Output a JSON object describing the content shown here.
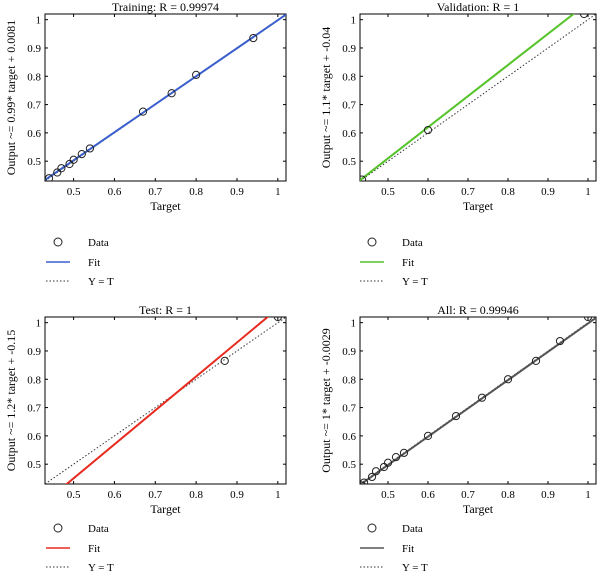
{
  "chart_data": [
    {
      "type": "scatter",
      "title": "Training: R = 0.99974",
      "xlabel": "Target",
      "ylabel": "Output ~= 0.99* target + 0.0081",
      "xlim": [
        0.43,
        1.02
      ],
      "ylim": [
        0.43,
        1.02
      ],
      "xticks": [
        "0.5",
        "0.6",
        "0.7",
        "0.8",
        "0.9",
        "1"
      ],
      "yticks": [
        "0.5",
        "0.6",
        "0.7",
        "0.8",
        "0.9",
        "1"
      ],
      "fit_color": "#3a5fcd",
      "fit": {
        "slope": 0.99,
        "intercept": 0.0081
      },
      "points": [
        {
          "x": 0.44,
          "y": 0.44
        },
        {
          "x": 0.46,
          "y": 0.46
        },
        {
          "x": 0.47,
          "y": 0.475
        },
        {
          "x": 0.49,
          "y": 0.49
        },
        {
          "x": 0.5,
          "y": 0.505
        },
        {
          "x": 0.52,
          "y": 0.525
        },
        {
          "x": 0.54,
          "y": 0.545
        },
        {
          "x": 0.67,
          "y": 0.675
        },
        {
          "x": 0.74,
          "y": 0.74
        },
        {
          "x": 0.8,
          "y": 0.805
        },
        {
          "x": 0.94,
          "y": 0.935
        }
      ],
      "legend": [
        "Data",
        "Fit",
        "Y = T"
      ]
    },
    {
      "type": "scatter",
      "title": "Validation: R = 1",
      "xlabel": "Target",
      "ylabel": "Output ~= 1.1* target + -0.04",
      "xlim": [
        0.43,
        1.02
      ],
      "ylim": [
        0.43,
        1.02
      ],
      "xticks": [
        "0.5",
        "0.6",
        "0.7",
        "0.8",
        "0.9",
        "1"
      ],
      "yticks": [
        "0.5",
        "0.6",
        "0.7",
        "0.8",
        "0.9",
        "1"
      ],
      "fit_color": "#55c32a",
      "fit": {
        "slope": 1.1,
        "intercept": -0.04
      },
      "points": [
        {
          "x": 0.435,
          "y": 0.435
        },
        {
          "x": 0.6,
          "y": 0.61
        },
        {
          "x": 0.99,
          "y": 1.02
        }
      ],
      "legend": [
        "Data",
        "Fit",
        "Y = T"
      ]
    },
    {
      "type": "scatter",
      "title": "Test: R = 1",
      "xlabel": "Target",
      "ylabel": "Output ~= 1.2* target + -0.15",
      "xlim": [
        0.43,
        1.02
      ],
      "ylim": [
        0.43,
        1.02
      ],
      "xticks": [
        "0.5",
        "0.6",
        "0.7",
        "0.8",
        "0.9",
        "1"
      ],
      "yticks": [
        "0.5",
        "0.6",
        "0.7",
        "0.8",
        "0.9",
        "1"
      ],
      "fit_color": "#e82a1e",
      "fit": {
        "slope": 1.2,
        "intercept": -0.15
      },
      "points": [
        {
          "x": 0.87,
          "y": 0.865
        },
        {
          "x": 1.0,
          "y": 1.02
        }
      ],
      "legend": [
        "Data",
        "Fit",
        "Y = T"
      ]
    },
    {
      "type": "scatter",
      "title": "All: R = 0.99946",
      "xlabel": "Target",
      "ylabel": "Output ~= 1* target + -0.0029",
      "xlim": [
        0.43,
        1.02
      ],
      "ylim": [
        0.43,
        1.02
      ],
      "xticks": [
        "0.5",
        "0.6",
        "0.7",
        "0.8",
        "0.9",
        "1"
      ],
      "yticks": [
        "0.5",
        "0.6",
        "0.7",
        "0.8",
        "0.9",
        "1"
      ],
      "fit_color": "#555555",
      "fit": {
        "slope": 1.0,
        "intercept": -0.0029
      },
      "points": [
        {
          "x": 0.435,
          "y": 0.425
        },
        {
          "x": 0.44,
          "y": 0.435
        },
        {
          "x": 0.46,
          "y": 0.455
        },
        {
          "x": 0.47,
          "y": 0.475
        },
        {
          "x": 0.49,
          "y": 0.49
        },
        {
          "x": 0.5,
          "y": 0.505
        },
        {
          "x": 0.52,
          "y": 0.525
        },
        {
          "x": 0.54,
          "y": 0.54
        },
        {
          "x": 0.6,
          "y": 0.6
        },
        {
          "x": 0.67,
          "y": 0.67
        },
        {
          "x": 0.735,
          "y": 0.735
        },
        {
          "x": 0.8,
          "y": 0.8
        },
        {
          "x": 0.87,
          "y": 0.865
        },
        {
          "x": 0.93,
          "y": 0.935
        },
        {
          "x": 1.0,
          "y": 1.02
        }
      ],
      "legend": [
        "Data",
        "Fit",
        "Y = T"
      ]
    }
  ]
}
